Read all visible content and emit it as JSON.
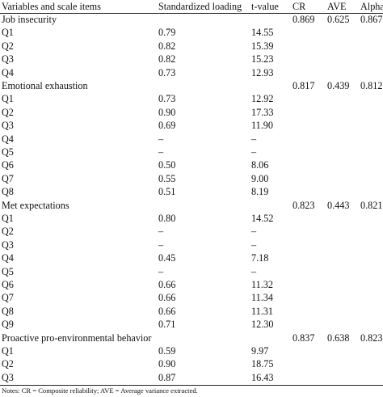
{
  "table": {
    "headers": {
      "item": "Variables and scale items",
      "loading": "Standardized loading",
      "tvalue": "t-value",
      "cr": "CR",
      "ave": "AVE",
      "alpha": "Alpha"
    },
    "rows": [
      {
        "item": "Job insecurity",
        "loading": "",
        "tvalue": "",
        "cr": "0.869",
        "ave": "0.625",
        "alpha": "0.867"
      },
      {
        "item": "Q1",
        "loading": "0.79",
        "tvalue": "14.55",
        "cr": "",
        "ave": "",
        "alpha": ""
      },
      {
        "item": "Q2",
        "loading": "0.82",
        "tvalue": "15.39",
        "cr": "",
        "ave": "",
        "alpha": ""
      },
      {
        "item": "Q3",
        "loading": "0.82",
        "tvalue": "15.23",
        "cr": "",
        "ave": "",
        "alpha": ""
      },
      {
        "item": "Q4",
        "loading": "0.73",
        "tvalue": "12.93",
        "cr": "",
        "ave": "",
        "alpha": ""
      },
      {
        "item": "Emotional exhaustion",
        "loading": "",
        "tvalue": "",
        "cr": "0.817",
        "ave": "0.439",
        "alpha": "0.812"
      },
      {
        "item": "Q1",
        "loading": "0.73",
        "tvalue": "12.92",
        "cr": "",
        "ave": "",
        "alpha": ""
      },
      {
        "item": "Q2",
        "loading": "0.90",
        "tvalue": "17.33",
        "cr": "",
        "ave": "",
        "alpha": ""
      },
      {
        "item": "Q3",
        "loading": "0.69",
        "tvalue": "11.90",
        "cr": "",
        "ave": "",
        "alpha": ""
      },
      {
        "item": "Q4",
        "loading": "–",
        "tvalue": "–",
        "cr": "",
        "ave": "",
        "alpha": ""
      },
      {
        "item": "Q5",
        "loading": "–",
        "tvalue": "–",
        "cr": "",
        "ave": "",
        "alpha": ""
      },
      {
        "item": "Q6",
        "loading": "0.50",
        "tvalue": "8.06",
        "cr": "",
        "ave": "",
        "alpha": ""
      },
      {
        "item": "Q7",
        "loading": "0.55",
        "tvalue": "9.00",
        "cr": "",
        "ave": "",
        "alpha": ""
      },
      {
        "item": "Q8",
        "loading": "0.51",
        "tvalue": "8.19",
        "cr": "",
        "ave": "",
        "alpha": ""
      },
      {
        "item": "Met expectations",
        "loading": "",
        "tvalue": "",
        "cr": "0.823",
        "ave": "0.443",
        "alpha": "0.821"
      },
      {
        "item": "Q1",
        "loading": "0.80",
        "tvalue": "14.52",
        "cr": "",
        "ave": "",
        "alpha": ""
      },
      {
        "item": "Q2",
        "loading": "–",
        "tvalue": "–",
        "cr": "",
        "ave": "",
        "alpha": ""
      },
      {
        "item": "Q3",
        "loading": "–",
        "tvalue": "–",
        "cr": "",
        "ave": "",
        "alpha": ""
      },
      {
        "item": "Q4",
        "loading": "0.45",
        "tvalue": "7.18",
        "cr": "",
        "ave": "",
        "alpha": ""
      },
      {
        "item": "Q5",
        "loading": "–",
        "tvalue": "–",
        "cr": "",
        "ave": "",
        "alpha": ""
      },
      {
        "item": "Q6",
        "loading": "0.66",
        "tvalue": "11.32",
        "cr": "",
        "ave": "",
        "alpha": ""
      },
      {
        "item": "Q7",
        "loading": "0.66",
        "tvalue": "11.34",
        "cr": "",
        "ave": "",
        "alpha": ""
      },
      {
        "item": "Q8",
        "loading": "0.66",
        "tvalue": "11.31",
        "cr": "",
        "ave": "",
        "alpha": ""
      },
      {
        "item": "Q9",
        "loading": "0.71",
        "tvalue": "12.30",
        "cr": "",
        "ave": "",
        "alpha": ""
      },
      {
        "item": "Proactive pro-environmental behavior",
        "loading": "",
        "tvalue": "",
        "cr": "0.837",
        "ave": "0.638",
        "alpha": "0.823"
      },
      {
        "item": "Q1",
        "loading": "0.59",
        "tvalue": "9.97",
        "cr": "",
        "ave": "",
        "alpha": ""
      },
      {
        "item": "Q2",
        "loading": "0.90",
        "tvalue": "18.75",
        "cr": "",
        "ave": "",
        "alpha": ""
      },
      {
        "item": "Q3",
        "loading": "0.87",
        "tvalue": "16.43",
        "cr": "",
        "ave": "",
        "alpha": ""
      }
    ]
  },
  "notes": "Notes: CR = Composite reliability; AVE = Average variance extracted."
}
